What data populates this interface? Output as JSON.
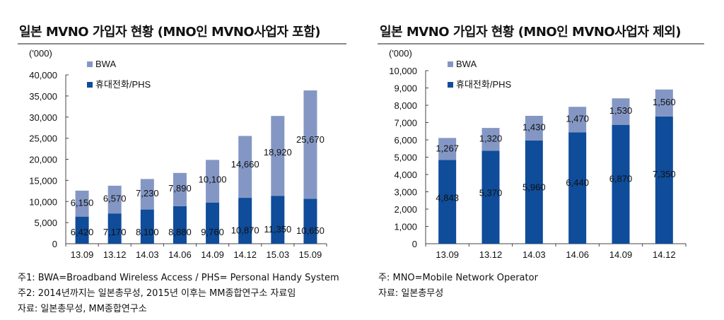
{
  "colors": {
    "BWA": "#8497c4",
    "phone": "#0f4c9a",
    "axis": "#444444"
  },
  "charts": [
    {
      "title": "일본 MVNO 가입자 현황 (MNO인 MVNO사업자 포함)",
      "notes": [
        "주1: BWA=Broadband Wireless Access / PHS=  Personal Handy System",
        "주2: 2014년까지는 일본총무성, 2015년 이후는 MM종합연구소 자료임",
        "자료:  일본총무성, MM종합연구소"
      ]
    },
    {
      "title": "일본 MVNO 가입자 현황 (MNO인 MVNO사업자 제외)",
      "notes": [
        "주: MNO=Mobile Network Operator",
        "자료:  일본총무성"
      ]
    }
  ],
  "chart_data": [
    {
      "type": "bar",
      "stacked": true,
      "unit": "('000)",
      "ylim": [
        0,
        40000
      ],
      "yticks": [
        "0",
        "5,000",
        "10,000",
        "15,000",
        "20,000",
        "25,000",
        "30,000",
        "35,000",
        "40,000"
      ],
      "categories": [
        "13.09",
        "13.12",
        "14.03",
        "14.06",
        "14.09",
        "14.12",
        "15.03",
        "15.09"
      ],
      "series": [
        {
          "name": "휴대전화/PHS",
          "values": [
            6420,
            7170,
            8100,
            8880,
            9760,
            10870,
            11350,
            10650
          ],
          "labels": [
            "6,420",
            "7,170",
            "8,100",
            "8,880",
            "9,760",
            "10,870",
            "11,350",
            "10,650"
          ]
        },
        {
          "name": "BWA",
          "values": [
            6150,
            6570,
            7230,
            7890,
            10100,
            14660,
            18920,
            25670
          ],
          "labels": [
            "6,150",
            "6,570",
            "7,230",
            "7,890",
            "10,100",
            "14,660",
            "18,920",
            "25,670"
          ]
        }
      ],
      "legend": "top-left"
    },
    {
      "type": "bar",
      "stacked": true,
      "unit": "('000)",
      "ylim": [
        0,
        10000
      ],
      "yticks": [
        "0",
        "1,000",
        "2,000",
        "3,000",
        "4,000",
        "5,000",
        "6,000",
        "7,000",
        "8,000",
        "9,000",
        "10,000"
      ],
      "categories": [
        "13.09",
        "13.12",
        "14.03",
        "14.06",
        "14.09",
        "14.12"
      ],
      "series": [
        {
          "name": "휴대전화/PHS",
          "values": [
            4843,
            5370,
            5960,
            6440,
            6870,
            7350
          ],
          "labels": [
            "4,843",
            "5,370",
            "5,960",
            "6,440",
            "6,870",
            "7,350"
          ]
        },
        {
          "name": "BWA",
          "values": [
            1267,
            1320,
            1430,
            1470,
            1530,
            1560
          ],
          "labels": [
            "1,267",
            "1,320",
            "1,430",
            "1,470",
            "1,530",
            "1,560"
          ]
        }
      ],
      "legend": "top-left"
    }
  ]
}
